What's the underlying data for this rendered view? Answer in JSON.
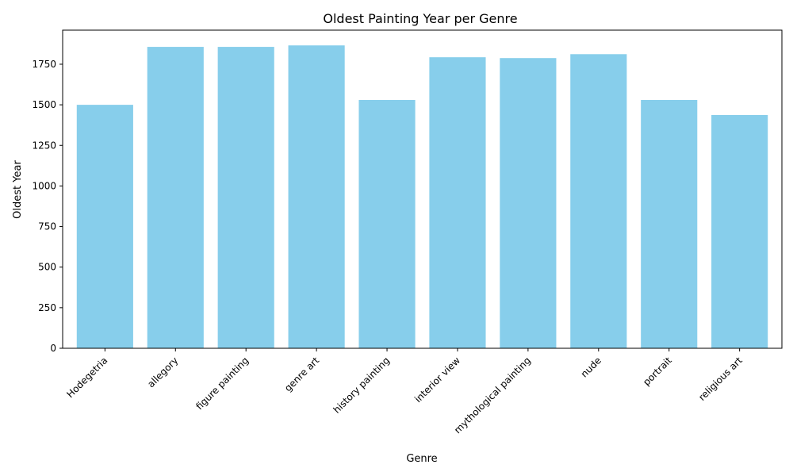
{
  "chart_data": {
    "type": "bar",
    "title": "Oldest Painting Year per Genre",
    "xlabel": "Genre",
    "ylabel": "Oldest Year",
    "categories": [
      "Hodegetria",
      "allegory",
      "figure painting",
      "genre art",
      "history painting",
      "interior view",
      "mythological painting",
      "nude",
      "portrait",
      "religious art"
    ],
    "values": [
      1500,
      1857,
      1857,
      1866,
      1530,
      1793,
      1788,
      1812,
      1530,
      1437
    ],
    "ylim": [
      0,
      1960
    ],
    "yticks": [
      0,
      250,
      500,
      750,
      1000,
      1250,
      1500,
      1750
    ],
    "bar_color": "#87ceeb",
    "grid": false,
    "legend": "none"
  }
}
